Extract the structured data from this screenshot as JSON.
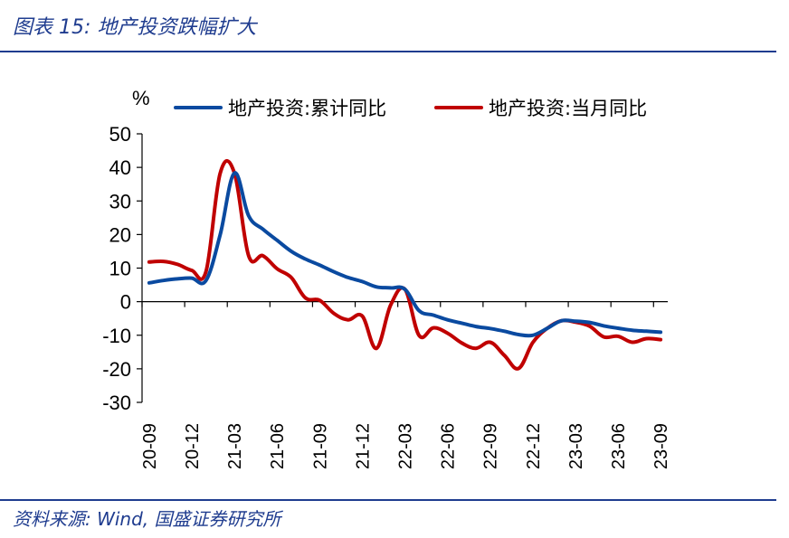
{
  "header": {
    "title": "图表 15:  地产投资跌幅扩大"
  },
  "footer": {
    "source": "资料来源:  Wind, 国盛证券研究所"
  },
  "colors": {
    "brand_blue": "#1f3c8f",
    "series_blue": "#0a4aa0",
    "series_red": "#c00000"
  },
  "chart_data": {
    "type": "line",
    "title": "地产投资跌幅扩大",
    "ylabel": "%",
    "xlabel": "",
    "ylim": [
      -30,
      50
    ],
    "yticks": [
      50,
      40,
      30,
      20,
      10,
      0,
      -10,
      -20,
      -30
    ],
    "tick_labels": [
      "20-09",
      "20-12",
      "21-03",
      "21-06",
      "21-09",
      "21-12",
      "22-03",
      "22-06",
      "22-09",
      "22-12",
      "23-03",
      "23-06",
      "23-09"
    ],
    "tick_positions": [
      0,
      3,
      6,
      9,
      12,
      15,
      18,
      21,
      24,
      27,
      30,
      33,
      36
    ],
    "legend_position": "top",
    "series": [
      {
        "name": "地产投资:累计同比",
        "values": [
          5.6,
          6.3,
          6.8,
          7.0,
          6.3,
          20.0,
          38.3,
          25.6,
          21.6,
          18.3,
          15.0,
          12.7,
          10.9,
          8.9,
          7.2,
          6.0,
          4.4,
          4.1,
          3.7,
          -2.7,
          -4.0,
          -5.4,
          -6.4,
          -7.4,
          -8.0,
          -8.8,
          -9.8,
          -10.0,
          -8.0,
          -5.7,
          -5.8,
          -6.2,
          -7.2,
          -7.9,
          -8.5,
          -8.8,
          -9.1
        ]
      },
      {
        "name": "地产投资:当月同比",
        "values": [
          11.8,
          12.0,
          11.1,
          9.3,
          9.0,
          38.3,
          38.3,
          13.7,
          13.7,
          9.8,
          7.2,
          1.1,
          0.4,
          -3.5,
          -5.4,
          -4.3,
          -13.9,
          -1.0,
          3.7,
          -10.1,
          -7.8,
          -9.4,
          -12.3,
          -13.9,
          -12.1,
          -16.0,
          -19.9,
          -12.2,
          -8.0,
          -5.7,
          -6.1,
          -7.3,
          -10.5,
          -10.3,
          -12.1,
          -11.0,
          -11.3
        ]
      }
    ]
  }
}
